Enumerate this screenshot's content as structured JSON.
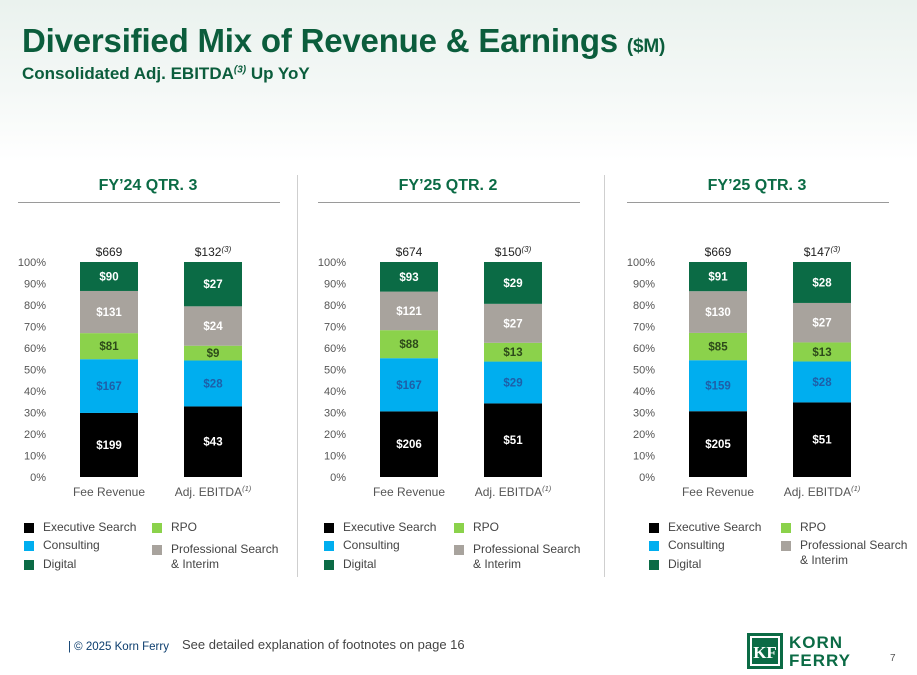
{
  "title": "Diversified Mix of Revenue & Earnings",
  "title_unit": "($M)",
  "subtitle": "Consolidated Adj. EBITDA",
  "subtitle_sup": "(3)",
  "subtitle_tail": " Up YoY",
  "colors": {
    "executive_search": "#000000",
    "consulting": "#00aeef",
    "digital": "#0b6b45",
    "rpo": "#8bd24b",
    "professional_search": "#a8a39d",
    "accent": "#0b5d3c"
  },
  "legend": {
    "executive_search": "Executive Search",
    "consulting": "Consulting",
    "digital": "Digital",
    "rpo": "RPO",
    "professional_search_1": "Professional Search",
    "professional_search_2": "& Interim"
  },
  "chart_data": [
    {
      "type": "bar",
      "stacked": true,
      "normalized": true,
      "title": "FY’24 QTR. 3",
      "categories": [
        "Fee Revenue",
        "Adj. EBITDA"
      ],
      "category_sup": [
        "",
        "(1)"
      ],
      "ylim": [
        0,
        100
      ],
      "yticks": [
        "0%",
        "10%",
        "20%",
        "30%",
        "40%",
        "50%",
        "60%",
        "70%",
        "80%",
        "90%",
        "100%"
      ],
      "totals": [
        "$669",
        "$132"
      ],
      "total_sup": [
        "",
        "(3)"
      ],
      "series": [
        {
          "name": "Executive Search",
          "values": [
            199,
            43
          ],
          "labels": [
            "$199",
            "$43"
          ]
        },
        {
          "name": "Consulting",
          "values": [
            167,
            28
          ],
          "labels": [
            "$167",
            "$28"
          ]
        },
        {
          "name": "RPO",
          "values": [
            81,
            9
          ],
          "labels": [
            "$81",
            "$9"
          ]
        },
        {
          "name": "Professional Search & Interim",
          "values": [
            131,
            24
          ],
          "labels": [
            "$131",
            "$24"
          ]
        },
        {
          "name": "Digital",
          "values": [
            90,
            27
          ],
          "labels": [
            "$90",
            "$27"
          ]
        }
      ]
    },
    {
      "type": "bar",
      "stacked": true,
      "normalized": true,
      "title": "FY’25 QTR. 2",
      "categories": [
        "Fee Revenue",
        "Adj. EBITDA"
      ],
      "category_sup": [
        "",
        "(1)"
      ],
      "ylim": [
        0,
        100
      ],
      "yticks": [
        "0%",
        "10%",
        "20%",
        "30%",
        "40%",
        "50%",
        "60%",
        "70%",
        "80%",
        "90%",
        "100%"
      ],
      "totals": [
        "$674",
        "$150"
      ],
      "total_sup": [
        "",
        "(3)"
      ],
      "series": [
        {
          "name": "Executive Search",
          "values": [
            206,
            51
          ],
          "labels": [
            "$206",
            "$51"
          ]
        },
        {
          "name": "Consulting",
          "values": [
            167,
            29
          ],
          "labels": [
            "$167",
            "$29"
          ]
        },
        {
          "name": "RPO",
          "values": [
            88,
            13
          ],
          "labels": [
            "$88",
            "$13"
          ]
        },
        {
          "name": "Professional Search & Interim",
          "values": [
            121,
            27
          ],
          "labels": [
            "$121",
            "$27"
          ]
        },
        {
          "name": "Digital",
          "values": [
            93,
            29
          ],
          "labels": [
            "$93",
            "$29"
          ]
        }
      ]
    },
    {
      "type": "bar",
      "stacked": true,
      "normalized": true,
      "title": "FY’25 QTR. 3",
      "categories": [
        "Fee Revenue",
        "Adj. EBITDA"
      ],
      "category_sup": [
        "",
        "(1)"
      ],
      "ylim": [
        0,
        100
      ],
      "yticks": [
        "0%",
        "10%",
        "20%",
        "30%",
        "40%",
        "50%",
        "60%",
        "70%",
        "80%",
        "90%",
        "100%"
      ],
      "totals": [
        "$669",
        "$147"
      ],
      "total_sup": [
        "",
        "(3)"
      ],
      "series": [
        {
          "name": "Executive Search",
          "values": [
            205,
            51
          ],
          "labels": [
            "$205",
            "$51"
          ]
        },
        {
          "name": "Consulting",
          "values": [
            159,
            28
          ],
          "labels": [
            "$159",
            "$28"
          ]
        },
        {
          "name": "RPO",
          "values": [
            85,
            13
          ],
          "labels": [
            "$85",
            "$13"
          ]
        },
        {
          "name": "Professional Search & Interim",
          "values": [
            130,
            27
          ],
          "labels": [
            "$130",
            "$27"
          ]
        },
        {
          "name": "Digital",
          "values": [
            91,
            28
          ],
          "labels": [
            "$91",
            "$28"
          ]
        }
      ]
    }
  ],
  "footer": {
    "copyright": "| © 2025 Korn Ferry",
    "note": "See detailed explanation of footnotes on page 16",
    "page": "7"
  },
  "logo": {
    "line1": "KORN",
    "line2": "FERRY",
    "mark": "KF"
  }
}
